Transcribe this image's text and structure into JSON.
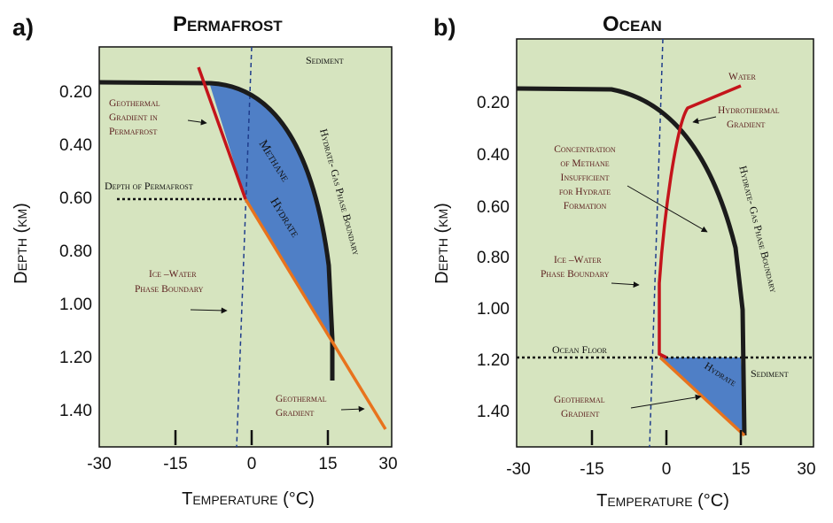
{
  "colors": {
    "panel_bg": "#d6e4bf",
    "hydrate_fill": "#4f7fc6",
    "phase_boundary": "#1b1b1b",
    "geothermal": "#e8731d",
    "gradient_red": "#c4141b",
    "ice_water": "#1f3d8c",
    "annotation": "#5a1c1c"
  },
  "panel_a": {
    "letter": "a)",
    "title": "Permafrost",
    "x_ticks": [
      "-30",
      "-15",
      "0",
      "15",
      "30"
    ],
    "y_ticks": [
      "0.20",
      "0.40",
      "0.60",
      "0.80",
      "1.00",
      "1.20",
      "1.40"
    ],
    "x_label": "Temperature (°C)",
    "y_label": "Depth (km)",
    "labels": {
      "sediment": "Sediment",
      "geo_perma_1": "Geothermal",
      "geo_perma_2": "Gradient in",
      "geo_perma_3": "Permafrost",
      "depth_perma": "Depth of Permafrost",
      "hydrate_1": "Methane",
      "hydrate_2": "Hydrate",
      "phase_boundary": "Hydrate- Gas Phase Boundary",
      "ice_1": "Ice –Water",
      "ice_2": "Phase Boundary",
      "geo_1": "Geothermal",
      "geo_2": "Gradient"
    }
  },
  "panel_b": {
    "letter": "b)",
    "title": "Ocean",
    "x_ticks": [
      "-30",
      "-15",
      "0",
      "15",
      "30"
    ],
    "y_ticks": [
      "0.20",
      "0.40",
      "0.60",
      "0.80",
      "1.00",
      "1.20",
      "1.40"
    ],
    "x_label": "Temperature (°C)",
    "y_label": "Depth (km)",
    "labels": {
      "water": "Water",
      "hydro_1": "Hydrothermal",
      "hydro_2": "Gradient",
      "conc_1": "Concentration",
      "conc_2": "of Methane",
      "conc_3": "Insufficient",
      "conc_4": "for Hydrate",
      "conc_5": "Formation",
      "phase_boundary": "Hydrate- Gas Phase Boundary",
      "ice_1": "Ice –Water",
      "ice_2": "Phase Boundary",
      "ocean_floor": "Ocean Floor",
      "hydrate": "Hydrate",
      "sediment": "Sediment",
      "geo_1": "Geothermal",
      "geo_2": "Gradient"
    }
  }
}
